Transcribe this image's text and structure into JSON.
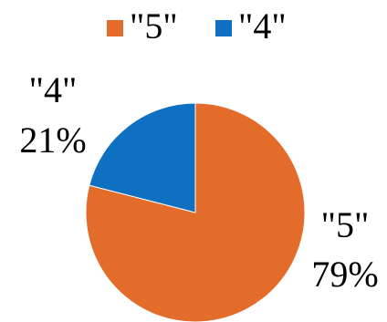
{
  "chart_data": {
    "type": "pie",
    "series": [
      {
        "name": "\"5\"",
        "value": 79,
        "label": "79%",
        "color": "#E46C2A"
      },
      {
        "name": "\"4\"",
        "value": 21,
        "label": "21%",
        "color": "#0F6FC1"
      }
    ],
    "legend": {
      "position": "top",
      "items": [
        "\"5\"",
        "\"4\""
      ]
    },
    "start_angle_deg": 0,
    "direction": "clockwise"
  }
}
